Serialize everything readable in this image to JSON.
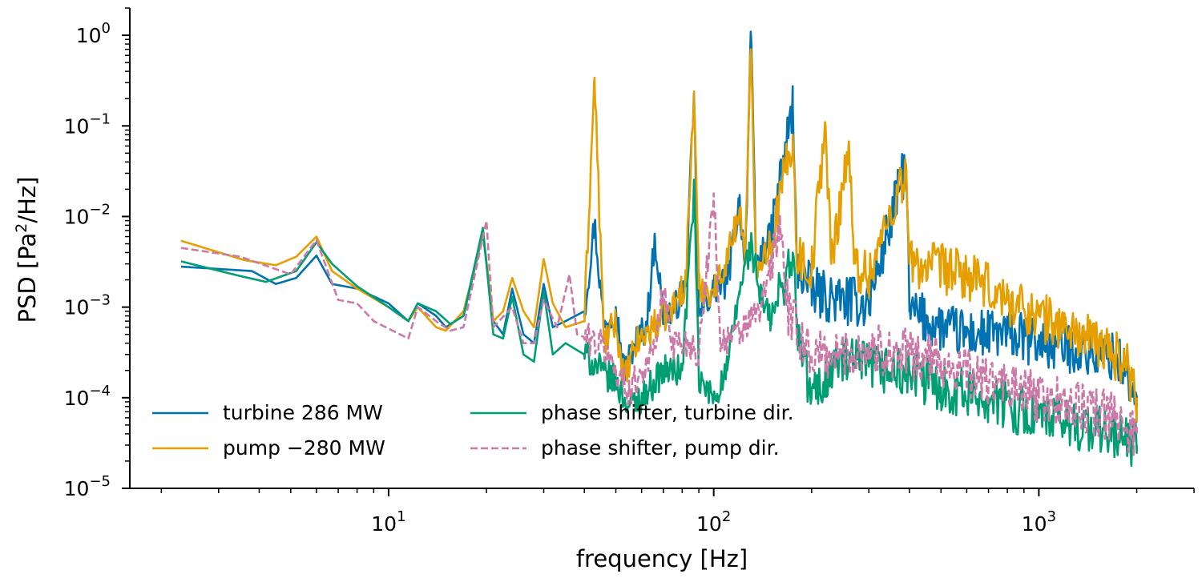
{
  "chart_data": {
    "type": "line",
    "xscale": "log",
    "yscale": "log",
    "xlim": [
      1.6,
      3000
    ],
    "ylim": [
      1e-05,
      2
    ],
    "xlabel": "frequency [Hz]",
    "ylabel": {
      "prefix": "PSD [Pa",
      "sup": "2",
      "suffix": "/Hz]"
    },
    "x_ticks": [
      {
        "value": 10,
        "base": "10",
        "exp": "1"
      },
      {
        "value": 100,
        "base": "10",
        "exp": "2"
      },
      {
        "value": 1000,
        "base": "10",
        "exp": "3"
      }
    ],
    "y_ticks": [
      {
        "value": 1,
        "base": "10",
        "exp": "0"
      },
      {
        "value": 0.1,
        "base": "10",
        "exp": "−1"
      },
      {
        "value": 0.01,
        "base": "10",
        "exp": "−2"
      },
      {
        "value": 0.001,
        "base": "10",
        "exp": "−3"
      },
      {
        "value": 0.0001,
        "base": "10",
        "exp": "−4"
      },
      {
        "value": 1e-05,
        "base": "10",
        "exp": "−5"
      }
    ],
    "legend_position": "lower-left",
    "series": [
      {
        "name": "turbine 286 MW",
        "color": "#0072b2",
        "dash": "solid",
        "anchors": [
          [
            2.3,
            0.0028
          ],
          [
            3.8,
            0.0025
          ],
          [
            4.5,
            0.0018
          ],
          [
            5.2,
            0.0021
          ],
          [
            6,
            0.0037
          ],
          [
            6.7,
            0.0018
          ],
          [
            8,
            0.0016
          ],
          [
            10,
            0.0011
          ],
          [
            11.5,
            0.0007
          ],
          [
            12.3,
            0.0011
          ],
          [
            14,
            0.0008
          ],
          [
            15,
            0.0006
          ],
          [
            17,
            0.0008
          ],
          [
            19.5,
            0.0065
          ],
          [
            21,
            0.0007
          ],
          [
            22.5,
            0.0005
          ],
          [
            24,
            0.0016
          ],
          [
            26,
            0.0005
          ],
          [
            28,
            0.0004
          ],
          [
            30,
            0.0018
          ],
          [
            32,
            0.0006
          ],
          [
            35,
            0.0007
          ],
          [
            40,
            0.0009
          ],
          [
            43,
            0.0085
          ],
          [
            46,
            0.0006
          ],
          [
            50,
            0.001
          ],
          [
            53,
            0.0002
          ],
          [
            58,
            0.00045
          ],
          [
            62,
            0.0006
          ],
          [
            66,
            0.0057
          ],
          [
            70,
            0.0008
          ],
          [
            75,
            0.0009
          ],
          [
            82,
            0.0017
          ],
          [
            87,
            0.2
          ],
          [
            90,
            0.0008
          ],
          [
            100,
            0.0016
          ],
          [
            110,
            0.0018
          ],
          [
            120,
            0.015
          ],
          [
            125,
            0.003
          ],
          [
            130,
            1.1
          ],
          [
            135,
            0.003
          ],
          [
            150,
            0.006
          ],
          [
            175,
            0.17
          ],
          [
            180,
            0.003
          ],
          [
            200,
            0.0015
          ],
          [
            240,
            0.0012
          ],
          [
            300,
            0.0011
          ],
          [
            390,
            0.038
          ],
          [
            400,
            0.0009
          ],
          [
            500,
            0.0006
          ],
          [
            600,
            0.0005
          ],
          [
            700,
            0.0005
          ],
          [
            800,
            0.0005
          ],
          [
            1000,
            0.0004
          ],
          [
            1300,
            0.00035
          ],
          [
            1500,
            0.0003
          ],
          [
            1700,
            0.00028
          ],
          [
            1850,
            0.0002
          ],
          [
            2000,
            8e-05
          ]
        ]
      },
      {
        "name": "pump −280 MW",
        "color": "#e69f00",
        "dash": "solid",
        "anchors": [
          [
            2.3,
            0.0054
          ],
          [
            3.6,
            0.0033
          ],
          [
            4.5,
            0.0029
          ],
          [
            5.2,
            0.0036
          ],
          [
            6,
            0.006
          ],
          [
            6.7,
            0.0025
          ],
          [
            8,
            0.0016
          ],
          [
            10,
            0.001
          ],
          [
            11.5,
            0.0007
          ],
          [
            12.3,
            0.001
          ],
          [
            14,
            0.0006
          ],
          [
            15,
            0.00055
          ],
          [
            17,
            0.0009
          ],
          [
            18,
            0.002
          ],
          [
            19.5,
            0.007
          ],
          [
            21,
            0.0007
          ],
          [
            22.5,
            0.0009
          ],
          [
            24,
            0.0021
          ],
          [
            26,
            0.0009
          ],
          [
            28,
            0.0006
          ],
          [
            30,
            0.0034
          ],
          [
            32,
            0.0011
          ],
          [
            35,
            0.0006
          ],
          [
            40,
            0.0007
          ],
          [
            43,
            0.34
          ],
          [
            46,
            0.0004
          ],
          [
            50,
            0.0007
          ],
          [
            53,
            0.00015
          ],
          [
            58,
            0.0004
          ],
          [
            65,
            0.0006
          ],
          [
            75,
            0.001
          ],
          [
            82,
            0.0019
          ],
          [
            87,
            0.24
          ],
          [
            90,
            0.0016
          ],
          [
            100,
            0.0015
          ],
          [
            110,
            0.0035
          ],
          [
            120,
            0.012
          ],
          [
            125,
            0.004
          ],
          [
            130,
            0.7
          ],
          [
            135,
            0.003
          ],
          [
            150,
            0.005
          ],
          [
            175,
            0.08
          ],
          [
            180,
            0.004
          ],
          [
            200,
            0.0025
          ],
          [
            220,
            0.11
          ],
          [
            230,
            0.003
          ],
          [
            260,
            0.065
          ],
          [
            270,
            0.003
          ],
          [
            300,
            0.0022
          ],
          [
            390,
            0.034
          ],
          [
            400,
            0.003
          ],
          [
            500,
            0.0027
          ],
          [
            600,
            0.0022
          ],
          [
            700,
            0.0016
          ],
          [
            800,
            0.0012
          ],
          [
            1000,
            0.0008
          ],
          [
            1200,
            0.0006
          ],
          [
            1500,
            0.0004
          ],
          [
            1700,
            0.0003
          ],
          [
            1850,
            0.00025
          ],
          [
            2000,
            0.0001
          ]
        ]
      },
      {
        "name": "phase shifter, turbine dir.",
        "color": "#009e73",
        "dash": "solid",
        "anchors": [
          [
            2.3,
            0.0032
          ],
          [
            3.5,
            0.0022
          ],
          [
            4.2,
            0.0019
          ],
          [
            5.2,
            0.0025
          ],
          [
            6,
            0.0052
          ],
          [
            6.7,
            0.003
          ],
          [
            8,
            0.0017
          ],
          [
            10,
            0.001
          ],
          [
            11.5,
            0.0007
          ],
          [
            12.3,
            0.0011
          ],
          [
            14,
            0.0009
          ],
          [
            15.5,
            0.00065
          ],
          [
            17,
            0.0008
          ],
          [
            19.5,
            0.0075
          ],
          [
            21,
            0.0005
          ],
          [
            22.5,
            0.00045
          ],
          [
            24,
            0.0013
          ],
          [
            26,
            0.0003
          ],
          [
            28,
            0.00025
          ],
          [
            30,
            0.0015
          ],
          [
            32,
            0.0003
          ],
          [
            35,
            0.0004
          ],
          [
            40,
            0.0003
          ],
          [
            45,
            0.0002
          ],
          [
            50,
            0.00015
          ],
          [
            55,
            8e-05
          ],
          [
            60,
            0.0001
          ],
          [
            70,
            0.0002
          ],
          [
            80,
            0.0002
          ],
          [
            87,
            0.02
          ],
          [
            90,
            0.00015
          ],
          [
            100,
            0.0001
          ],
          [
            110,
            0.0002
          ],
          [
            120,
            0.0015
          ],
          [
            130,
            0.005
          ],
          [
            140,
            0.0012
          ],
          [
            150,
            0.0007
          ],
          [
            175,
            0.004
          ],
          [
            180,
            0.0006
          ],
          [
            200,
            0.0001
          ],
          [
            240,
            0.00025
          ],
          [
            300,
            0.00022
          ],
          [
            400,
            0.00018
          ],
          [
            500,
            0.00013
          ],
          [
            700,
            0.0001
          ],
          [
            1000,
            6e-05
          ],
          [
            1300,
            5e-05
          ],
          [
            1700,
            4e-05
          ],
          [
            2000,
            3e-05
          ]
        ]
      },
      {
        "name": "phase shifter, pump dir.",
        "color": "#cc79a7",
        "dash": "dashed",
        "anchors": [
          [
            2.3,
            0.0045
          ],
          [
            3.5,
            0.0036
          ],
          [
            5,
            0.0023
          ],
          [
            6,
            0.0055
          ],
          [
            7,
            0.0012
          ],
          [
            8,
            0.0011
          ],
          [
            9,
            0.0007
          ],
          [
            11.5,
            0.00045
          ],
          [
            12.3,
            0.001
          ],
          [
            14,
            0.0007
          ],
          [
            15.5,
            0.00055
          ],
          [
            17,
            0.0006
          ],
          [
            20,
            0.009
          ],
          [
            21,
            0.0006
          ],
          [
            24,
            0.001
          ],
          [
            26,
            0.0004
          ],
          [
            28,
            0.0004
          ],
          [
            30,
            0.0012
          ],
          [
            33,
            0.0006
          ],
          [
            36,
            0.0023
          ],
          [
            38,
            0.0005
          ],
          [
            45,
            0.0004
          ],
          [
            50,
            0.0002
          ],
          [
            55,
            0.00012
          ],
          [
            60,
            0.0002
          ],
          [
            65,
            0.0003
          ],
          [
            70,
            0.0015
          ],
          [
            75,
            0.0004
          ],
          [
            85,
            0.0004
          ],
          [
            90,
            0.0003
          ],
          [
            100,
            0.018
          ],
          [
            105,
            0.0004
          ],
          [
            120,
            0.0005
          ],
          [
            140,
            0.001
          ],
          [
            160,
            0.008
          ],
          [
            170,
            0.0008
          ],
          [
            200,
            0.0003
          ],
          [
            240,
            0.0003
          ],
          [
            300,
            0.00035
          ],
          [
            400,
            0.0003
          ],
          [
            500,
            0.00025
          ],
          [
            700,
            0.00015
          ],
          [
            1000,
            0.0001
          ],
          [
            1300,
            8e-05
          ],
          [
            1700,
            6e-05
          ],
          [
            2000,
            4e-05
          ]
        ]
      }
    ]
  }
}
